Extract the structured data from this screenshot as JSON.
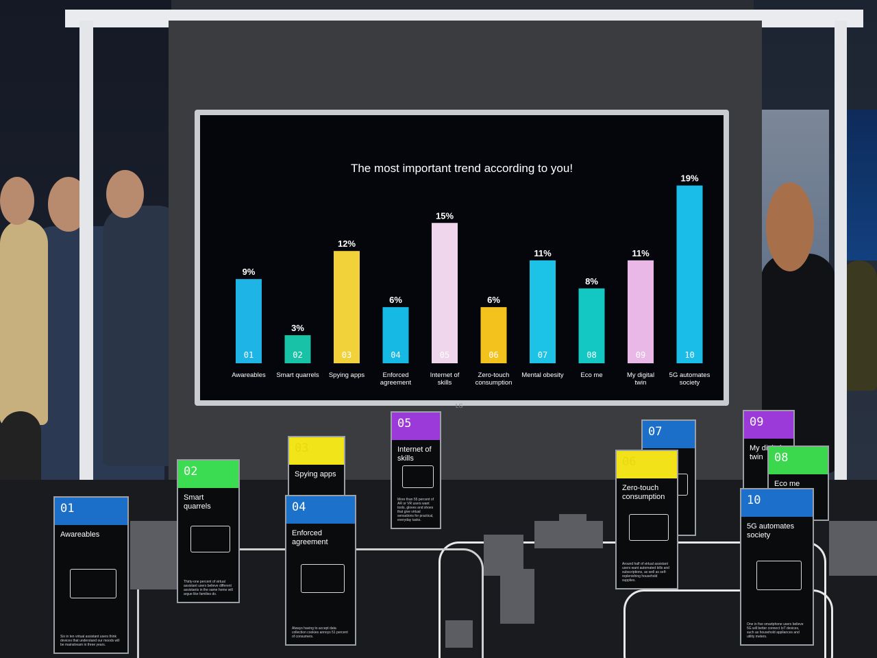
{
  "chart_data": {
    "type": "bar",
    "title": "The most important trend according to you!",
    "categories": [
      "Awareables",
      "Smart quarrels",
      "Spying apps",
      "Enforced agreement",
      "Internet of skills",
      "Zero-touch consumption",
      "Mental obesity",
      "Eco me",
      "My digital twin",
      "5G automates society"
    ],
    "numbers": [
      "01",
      "02",
      "03",
      "04",
      "05",
      "06",
      "07",
      "08",
      "09",
      "10"
    ],
    "values": [
      9,
      3,
      12,
      6,
      15,
      6,
      11,
      8,
      11,
      19
    ],
    "value_labels": [
      "9%",
      "3%",
      "12%",
      "6%",
      "15%",
      "6%",
      "11%",
      "8%",
      "11%",
      "19%"
    ],
    "colors": [
      "#1fb4e6",
      "#18c2a6",
      "#f2d23a",
      "#16b9e3",
      "#f0d6ec",
      "#f3c21c",
      "#1cc3e6",
      "#13c7c2",
      "#e9b8e6",
      "#19bde8"
    ],
    "ylim": [
      0,
      20
    ],
    "grid": false
  },
  "tv": {
    "brand": "LG"
  },
  "cards": [
    {
      "num": "01",
      "title": "Awareables",
      "color": "#1b6fc8",
      "text": "Six in ten virtual assistant users think devices that understand our moods will be mainstream in three years."
    },
    {
      "num": "02",
      "title": "Smart quarrels",
      "color": "#3cdc52",
      "text": "Thirty-one percent of virtual assistant users believe different assistants in the same home will argue like families do."
    },
    {
      "num": "03",
      "title": "Spying apps",
      "color": "#f1e51a",
      "text": ""
    },
    {
      "num": "04",
      "title": "Enforced agreement",
      "color": "#1c72cb",
      "text": "Always having to accept data collection cookies annoys 51 percent of consumers."
    },
    {
      "num": "05",
      "title": "Internet of skills",
      "color": "#9b3ad8",
      "text": "More than 55 percent of AR or VR users want tools, gloves and shoes that give virtual sensations for practical, everyday tasks."
    },
    {
      "num": "06",
      "title": "Zero-touch consumption",
      "color": "#f1e21a",
      "text": "Around half of virtual assistant users want automated bills and subscriptions, as well as self-replenishing household supplies."
    },
    {
      "num": "07",
      "title": "",
      "color": "#1c6fc9",
      "text": ""
    },
    {
      "num": "08",
      "title": "Eco me",
      "color": "#3bd84e",
      "text": ""
    },
    {
      "num": "09",
      "title": "My digital twin",
      "color": "#9b3ad8",
      "text": ""
    },
    {
      "num": "10",
      "title": "5G automates society",
      "color": "#1c6fca",
      "text": "One in five smartphone users believe 5G will better connect IoT devices, such as household appliances and utility meters."
    }
  ]
}
